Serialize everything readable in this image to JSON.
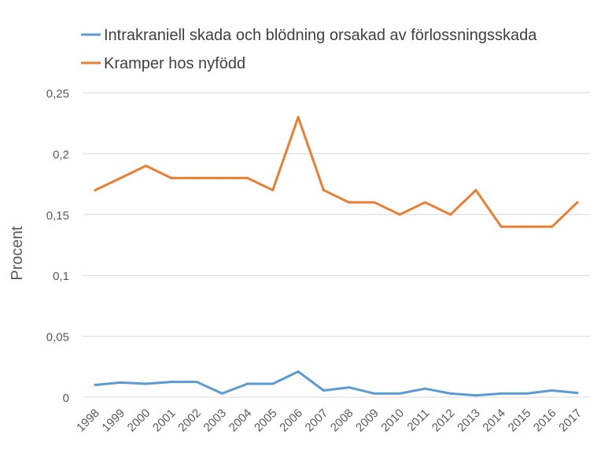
{
  "chart_data": {
    "type": "line",
    "title": "",
    "xlabel": "",
    "ylabel": "Procent",
    "ylim": [
      0,
      0.25
    ],
    "y_ticks": [
      "0",
      "0,05",
      "0,1",
      "0,15",
      "0,2",
      "0,25"
    ],
    "y_tick_values": [
      0,
      0.05,
      0.1,
      0.15,
      0.2,
      0.25
    ],
    "grid": true,
    "legend_position": "top",
    "categories": [
      "1998",
      "1999",
      "2000",
      "2001",
      "2002",
      "2003",
      "2004",
      "2005",
      "2006",
      "2007",
      "2008",
      "2009",
      "2010",
      "2011",
      "2012",
      "2013",
      "2014",
      "2015",
      "2016",
      "2017"
    ],
    "series": [
      {
        "name": "Intrakraniell skada och blödning orsakad av förlossningsskada",
        "color": "#5B9BD5",
        "values": [
          0.01,
          0.012,
          0.011,
          0.0125,
          0.0125,
          0.003,
          0.011,
          0.011,
          0.021,
          0.0055,
          0.008,
          0.003,
          0.003,
          0.007,
          0.003,
          0.0015,
          0.003,
          0.003,
          0.0055,
          0.0035
        ]
      },
      {
        "name": "Kramper hos nyfödd",
        "color": "#ED7D31",
        "values": [
          0.17,
          0.18,
          0.19,
          0.18,
          0.18,
          0.18,
          0.18,
          0.17,
          0.23,
          0.17,
          0.16,
          0.16,
          0.15,
          0.16,
          0.15,
          0.17,
          0.14,
          0.14,
          0.14,
          0.16
        ]
      }
    ]
  }
}
